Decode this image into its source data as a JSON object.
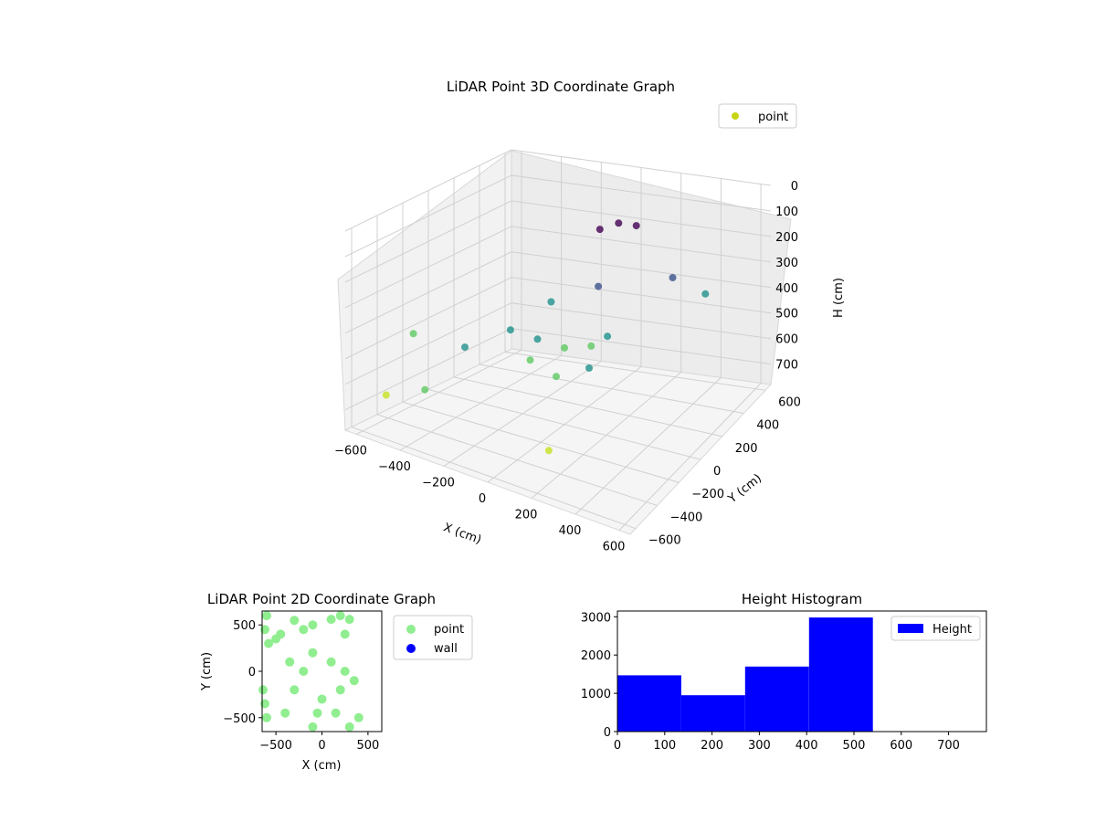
{
  "figure_background": "#ffffff",
  "chart_data": [
    {
      "type": "scatter",
      "title": "LiDAR Point 3D Coordinate Graph",
      "xlabel": "X (cm)",
      "ylabel": "Y (cm)",
      "zlabel": "H (cm)",
      "xlim": [
        -650,
        650
      ],
      "ylim": [
        -650,
        650
      ],
      "zlim": [
        0,
        780
      ],
      "z_inverted": true,
      "x_ticks": [
        -600,
        -400,
        -200,
        0,
        200,
        400,
        600
      ],
      "y_ticks": [
        -600,
        -400,
        -200,
        0,
        200,
        400,
        600
      ],
      "z_ticks": [
        0,
        100,
        200,
        300,
        400,
        500,
        600,
        700
      ],
      "grid": true,
      "legend": {
        "placement": "top-right",
        "entries": [
          "point"
        ]
      },
      "series": [
        {
          "name": "point",
          "color": "#c7d414",
          "colormap": "viridis"
        }
      ],
      "sample_points": [
        [
          -200,
          -100,
          420
        ],
        [
          -100,
          -50,
          450
        ],
        [
          0,
          0,
          480
        ],
        [
          100,
          50,
          470
        ],
        [
          150,
          100,
          440
        ],
        [
          -150,
          150,
          380
        ],
        [
          50,
          200,
          300
        ],
        [
          200,
          -150,
          460
        ],
        [
          -50,
          -200,
          470
        ],
        [
          100,
          -250,
          480
        ],
        [
          0,
          300,
          120
        ],
        [
          80,
          320,
          90
        ],
        [
          150,
          350,
          100
        ],
        [
          300,
          400,
          300
        ],
        [
          450,
          420,
          350
        ],
        [
          -300,
          -300,
          450
        ],
        [
          -400,
          -450,
          600
        ],
        [
          -550,
          -500,
          650
        ],
        [
          -600,
          -200,
          500
        ],
        [
          200,
          -500,
          650
        ]
      ]
    },
    {
      "type": "scatter",
      "title": "LiDAR Point 2D Coordinate Graph",
      "xlabel": "X (cm)",
      "ylabel": "Y (cm)",
      "xlim": [
        -650,
        650
      ],
      "ylim": [
        -650,
        650
      ],
      "x_ticks": [
        -500,
        0,
        500
      ],
      "y_ticks": [
        -500,
        0,
        500
      ],
      "grid": false,
      "legend": {
        "placement": "outside-right",
        "entries": [
          "point",
          "wall"
        ]
      },
      "series": [
        {
          "name": "point",
          "color": "#90ee90"
        },
        {
          "name": "wall",
          "color": "#0000ff"
        }
      ],
      "points": [
        [
          -600,
          600
        ],
        [
          -620,
          450
        ],
        [
          -580,
          300
        ],
        [
          -640,
          -200
        ],
        [
          -600,
          -500
        ],
        [
          -620,
          -350
        ],
        [
          -500,
          350
        ],
        [
          -450,
          400
        ],
        [
          -300,
          550
        ],
        [
          -200,
          450
        ],
        [
          -100,
          500
        ],
        [
          100,
          560
        ],
        [
          200,
          600
        ],
        [
          300,
          560
        ],
        [
          250,
          400
        ],
        [
          350,
          -100
        ],
        [
          400,
          -500
        ],
        [
          300,
          -600
        ],
        [
          -100,
          -600
        ],
        [
          -400,
          -450
        ],
        [
          -300,
          -200
        ],
        [
          -200,
          0
        ],
        [
          -100,
          200
        ],
        [
          0,
          -300
        ],
        [
          100,
          100
        ],
        [
          200,
          -200
        ],
        [
          -350,
          100
        ],
        [
          -50,
          -450
        ],
        [
          150,
          -450
        ],
        [
          250,
          0
        ]
      ]
    },
    {
      "type": "bar",
      "title": "Height Histogram",
      "xlabel": "",
      "ylabel": "",
      "xlim": [
        0,
        780
      ],
      "ylim": [
        0,
        3150
      ],
      "x_ticks": [
        0,
        100,
        200,
        300,
        400,
        500,
        600,
        700
      ],
      "y_ticks": [
        0,
        1000,
        2000,
        3000
      ],
      "bins": [
        {
          "start": 0,
          "end": 135,
          "count": 1470
        },
        {
          "start": 135,
          "end": 270,
          "count": 950
        },
        {
          "start": 270,
          "end": 405,
          "count": 1700
        },
        {
          "start": 405,
          "end": 540,
          "count": 2980
        }
      ],
      "legend": {
        "placement": "top-right",
        "entries": [
          "Height"
        ]
      },
      "series": [
        {
          "name": "Height",
          "color": "#0000ff"
        }
      ]
    }
  ]
}
